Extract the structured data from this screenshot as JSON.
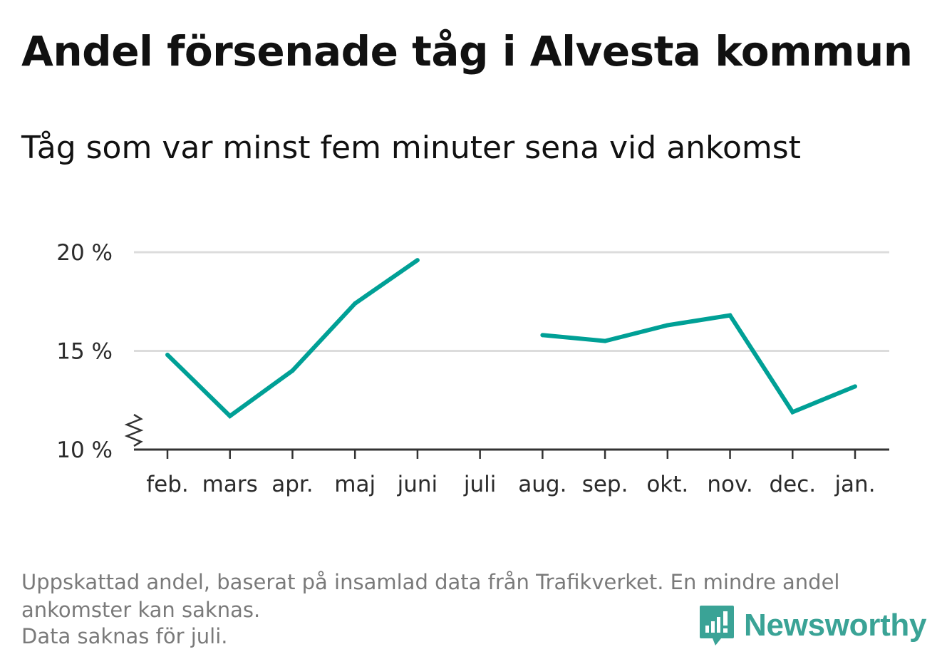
{
  "title": "Andel försenade tåg i Alvesta kommun",
  "subtitle": "Tåg som var minst fem minuter sena vid ankomst",
  "footnote": {
    "line1": "Uppskattad andel, baserat på insamlad data från Trafikverket. En mindre andel",
    "line2": "ankomster kan saknas.",
    "line3": "Data saknas för juli."
  },
  "brand": {
    "name": "Newsworthy",
    "color": "#3aa396"
  },
  "chart_data": {
    "type": "line",
    "categories": [
      "feb.",
      "mars",
      "apr.",
      "maj",
      "juni",
      "juli",
      "aug.",
      "sep.",
      "okt.",
      "nov.",
      "dec.",
      "jan."
    ],
    "series": [
      {
        "values": [
          14.8,
          11.7,
          14.0,
          17.4,
          19.6,
          null,
          15.8,
          15.5,
          16.3,
          16.8,
          11.9,
          13.2
        ],
        "color": "#00a096"
      }
    ],
    "y_ticks": [
      {
        "value": 10,
        "label": "10 %"
      },
      {
        "value": 15,
        "label": "15 %"
      },
      {
        "value": 20,
        "label": "20 %"
      }
    ],
    "ylim": [
      10,
      20
    ],
    "grid": true,
    "y_axis_break": true,
    "xlabel": "",
    "ylabel": ""
  }
}
